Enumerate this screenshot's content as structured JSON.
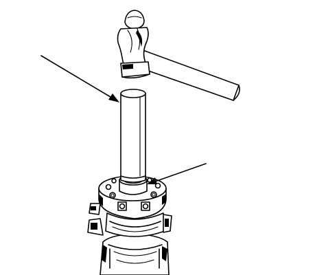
{
  "illustration": {
    "background": "#ffffff",
    "line_color": "#000000",
    "parts": [
      "hammer",
      "drift-rod",
      "stepped-collar",
      "flange-hub",
      "lower-housing",
      "leader-arrow-rod",
      "leader-arrow-hub"
    ]
  }
}
